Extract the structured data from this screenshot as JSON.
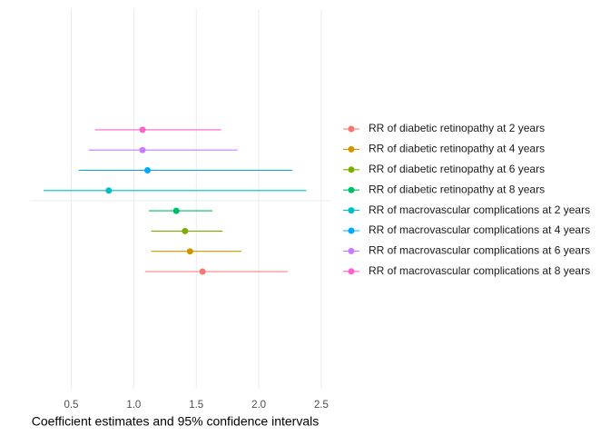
{
  "chart_data": {
    "type": "forest",
    "xlabel": "Coefficient estimates and 95% confidence intervals",
    "xlim": [
      0.17,
      2.58
    ],
    "xticks": [
      0.5,
      {
        "value": 1.0,
        "label": "1.0"
      },
      1.5,
      {
        "value": 2.0,
        "label": "2.0"
      },
      2.5
    ],
    "grid": true,
    "legend": "right",
    "series": [
      {
        "name": "RR of diabetic retinopathy at 2 years",
        "color": "#F8766D",
        "values": [
          1.55
        ],
        "lower": [
          1.09
        ],
        "upper": [
          2.23
        ]
      },
      {
        "name": "RR of diabetic retinopathy at 4 years",
        "color": "#CD9600",
        "values": [
          1.45
        ],
        "lower": [
          1.14
        ],
        "upper": [
          1.86
        ]
      },
      {
        "name": "RR of diabetic retinopathy at 6 years",
        "color": "#7CAE00",
        "values": [
          1.41
        ],
        "lower": [
          1.14
        ],
        "upper": [
          1.71
        ]
      },
      {
        "name": "RR of diabetic retinopathy at 8 years",
        "color": "#00BE67",
        "values": [
          1.34
        ],
        "lower": [
          1.12
        ],
        "upper": [
          1.63
        ]
      },
      {
        "name": "RR of macrovascular complications at 2 years",
        "color": "#00BFC4",
        "values": [
          0.8
        ],
        "lower": [
          0.28
        ],
        "upper": [
          2.38
        ]
      },
      {
        "name": "RR of macrovascular complications at 4 years",
        "color": "#00A9FF",
        "values": [
          1.11
        ],
        "lower": [
          0.56
        ],
        "upper": [
          2.27
        ]
      },
      {
        "name": "RR of macrovascular complications at 6 years",
        "color": "#C77CFF",
        "values": [
          1.07
        ],
        "lower": [
          0.64
        ],
        "upper": [
          1.83
        ]
      },
      {
        "name": "RR of macrovascular complications at 8 years",
        "color": "#FF61CC",
        "values": [
          1.07
        ],
        "lower": [
          0.69
        ],
        "upper": [
          1.7
        ]
      }
    ]
  }
}
